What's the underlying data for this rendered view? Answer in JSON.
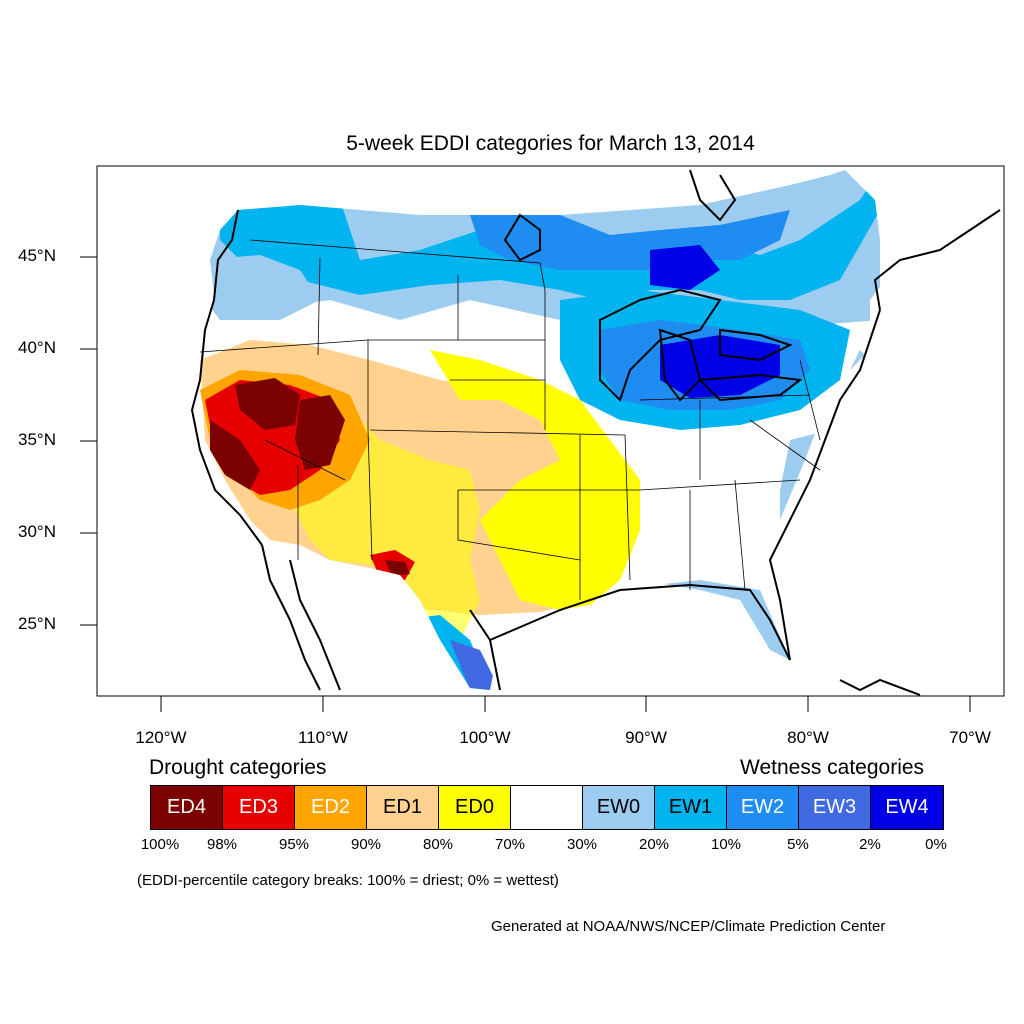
{
  "title": "5-week EDDI categories for March 13, 2014",
  "latitude_labels": [
    "45°N",
    "40°N",
    "35°N",
    "30°N",
    "25°N"
  ],
  "longitude_labels": [
    "120°W",
    "110°W",
    "100°W",
    "90°W",
    "80°W",
    "70°W"
  ],
  "legend": {
    "drought_heading": "Drought categories",
    "wetness_heading": "Wetness categories",
    "categories": [
      {
        "label": "ED4",
        "color": "#7b0000",
        "text_color": "#ffffff"
      },
      {
        "label": "ED3",
        "color": "#e60000",
        "text_color": "#ffffff"
      },
      {
        "label": "ED2",
        "color": "#ffa500",
        "text_color": "#ffffff"
      },
      {
        "label": "ED1",
        "color": "#ffd38f",
        "text_color": "#000000"
      },
      {
        "label": "ED0",
        "color": "#ffff00",
        "text_color": "#000000"
      },
      {
        "label": "",
        "color": "#ffffff",
        "text_color": "#000000"
      },
      {
        "label": "EW0",
        "color": "#9ccdf0",
        "text_color": "#000000"
      },
      {
        "label": "EW1",
        "color": "#00b4f0",
        "text_color": "#000000"
      },
      {
        "label": "EW2",
        "color": "#1e8cf0",
        "text_color": "#ffffff"
      },
      {
        "label": "EW3",
        "color": "#4169e1",
        "text_color": "#ffffff"
      },
      {
        "label": "EW4",
        "color": "#0000e6",
        "text_color": "#ffffff"
      }
    ],
    "percentiles": [
      "100%",
      "98%",
      "95%",
      "90%",
      "80%",
      "70%",
      "30%",
      "20%",
      "10%",
      "5%",
      "2%",
      "0%"
    ]
  },
  "note": "(EDDI-percentile category breaks: 100% = driest; 0% = wettest)",
  "credit": "Generated at NOAA/NWS/NCEP/Climate Prediction Center"
}
